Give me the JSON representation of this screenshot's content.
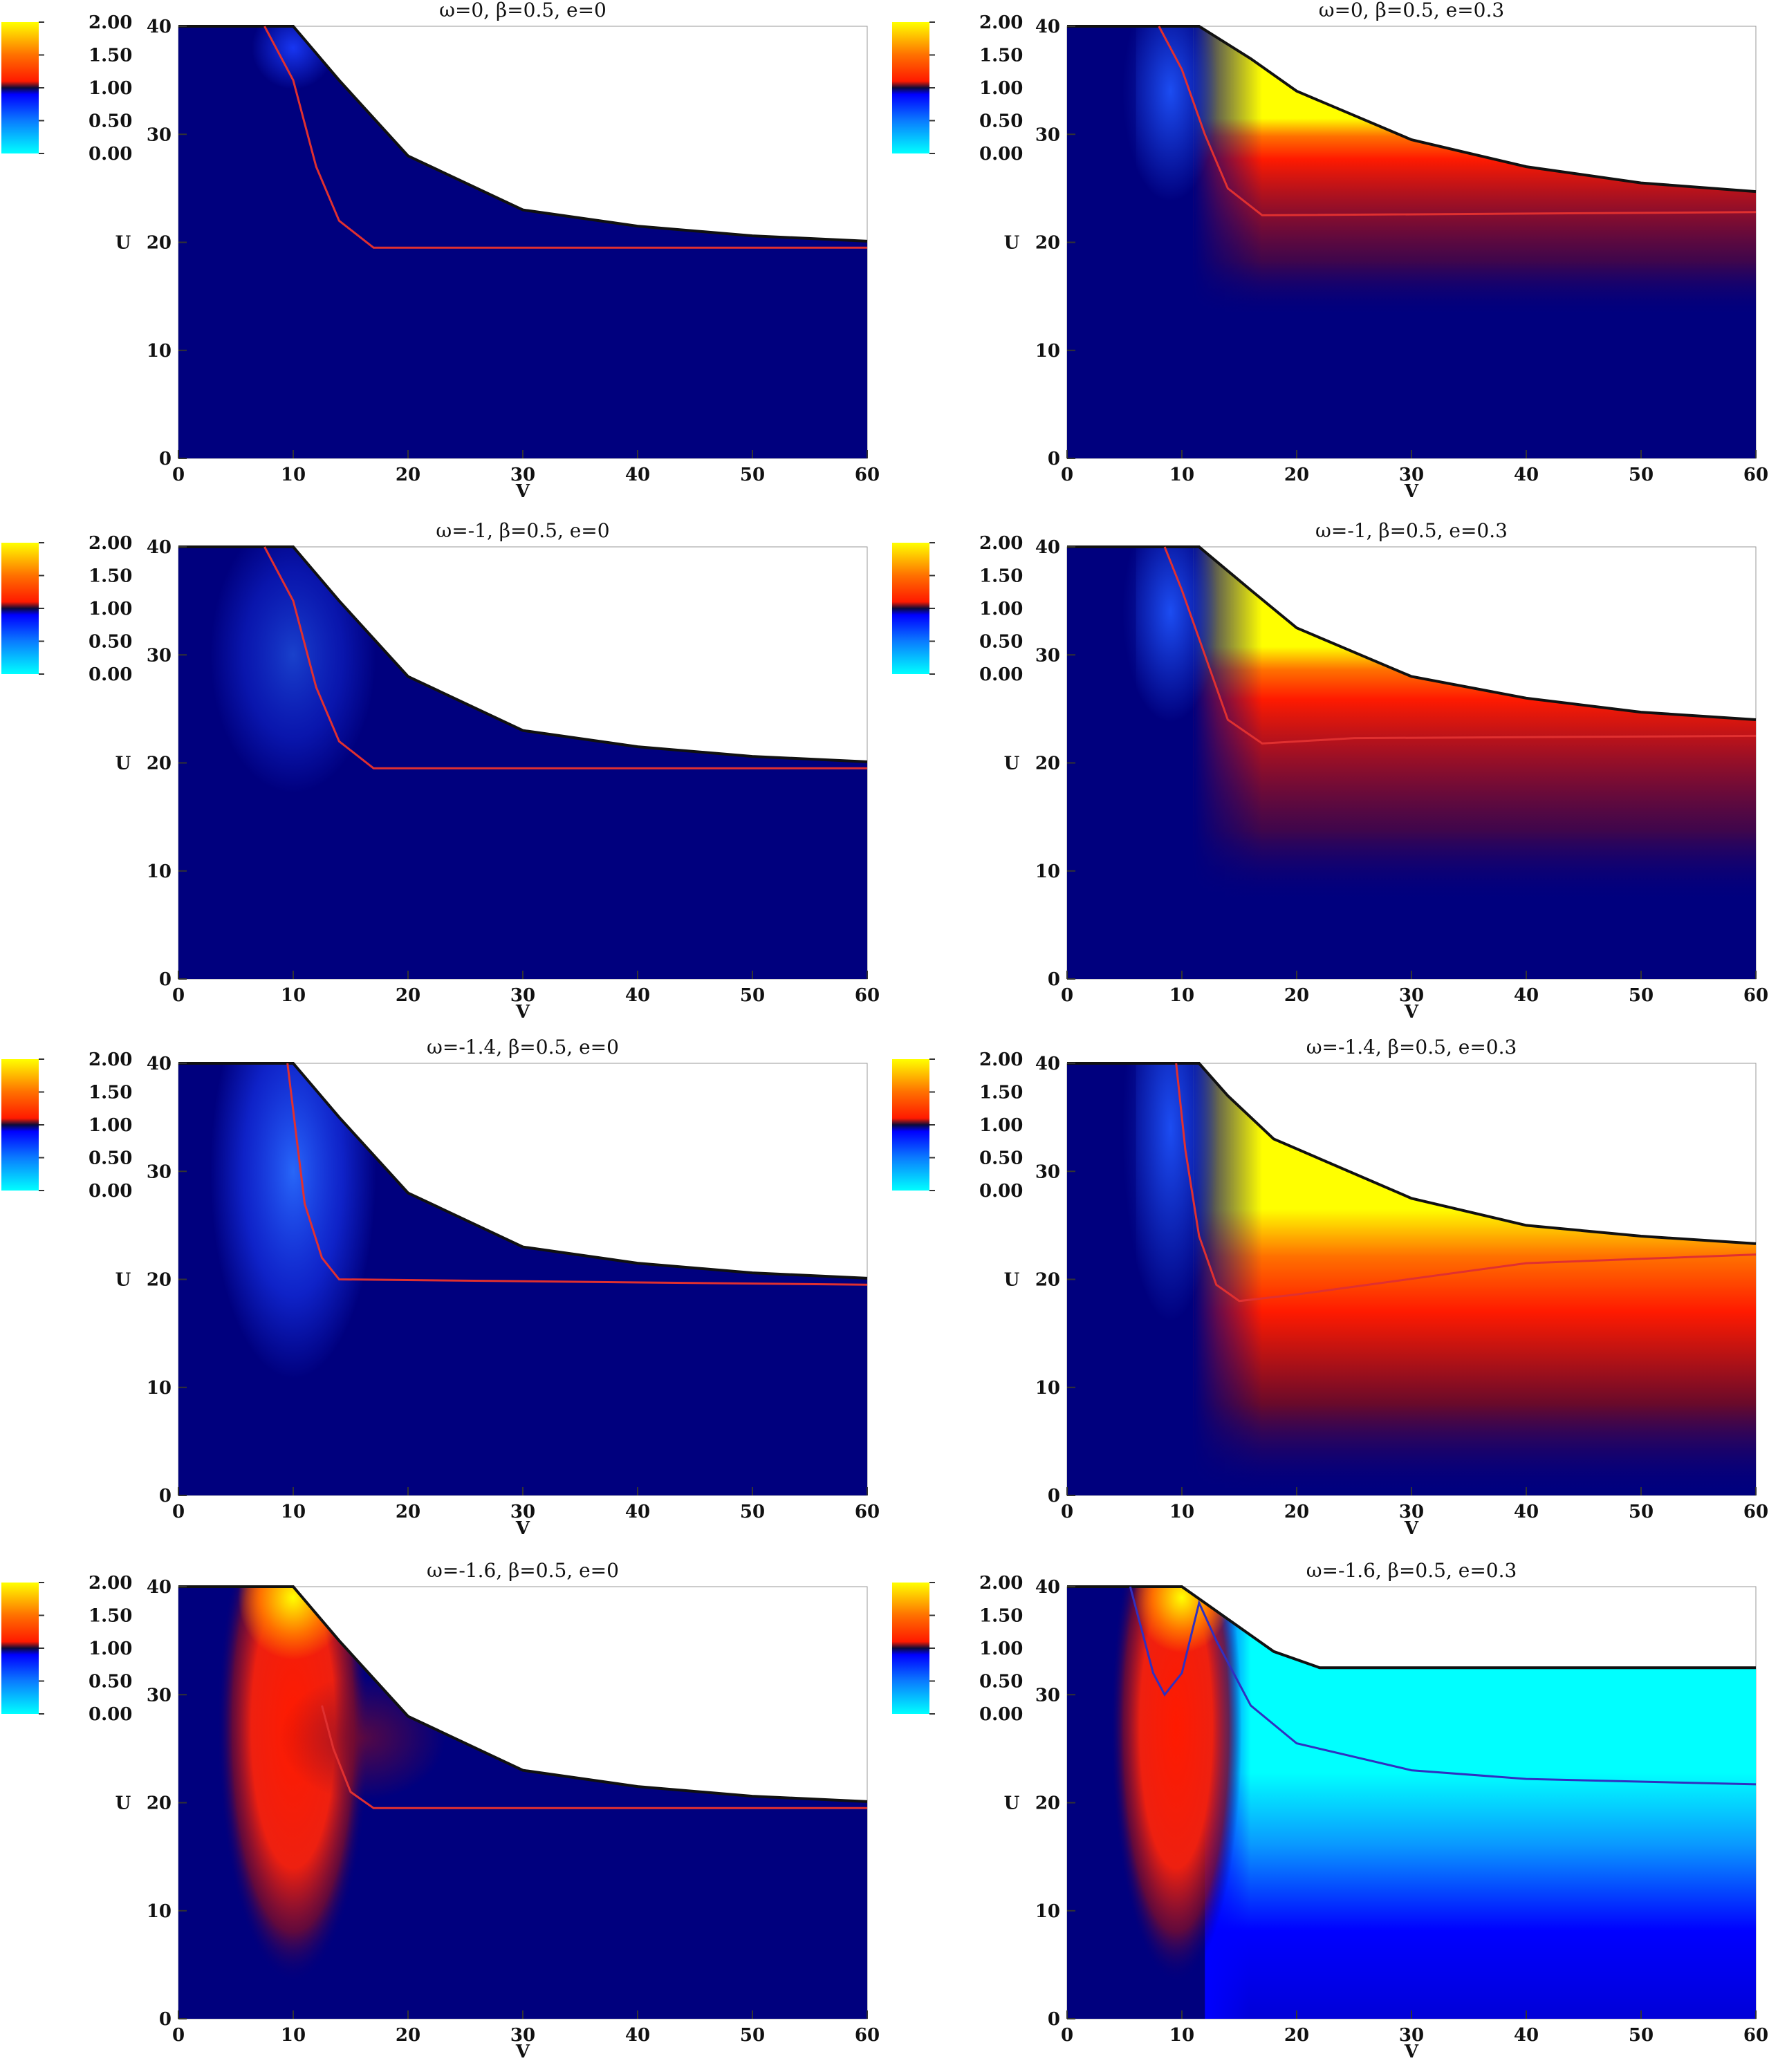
{
  "colorbar": {
    "ticks": [
      "2.00",
      "1.50",
      "1.00",
      "0.50",
      "0.00"
    ],
    "values": [
      2.0,
      1.5,
      1.0,
      0.5,
      0.0
    ],
    "colors": {
      "0.00": "#00ffff",
      "0.50": "#0a7bff",
      "0.90": "#0000ff",
      "1.00": "#0b0b3a",
      "1.10": "#ff1a00",
      "1.50": "#ff7000",
      "2.00": "#ffff00"
    },
    "background": "#00007e"
  },
  "chart_data": [
    {
      "type": "heatmap",
      "title": "ω=0,   β=0.5,   e=0",
      "xlabel": "V",
      "ylabel": "U",
      "xlim": [
        0,
        60
      ],
      "ylim": [
        0,
        40
      ],
      "xticks": [
        "0",
        "10",
        "20",
        "30",
        "40",
        "50",
        "60"
      ],
      "yticks": [
        "0",
        "10",
        "20",
        "30",
        "40"
      ],
      "boundary": [
        [
          0,
          40
        ],
        [
          10,
          40
        ],
        [
          14,
          35
        ],
        [
          20,
          28
        ],
        [
          30,
          23
        ],
        [
          40,
          21.5
        ],
        [
          50,
          20.6
        ],
        [
          60,
          20.1
        ]
      ],
      "red_curve": [
        [
          7.5,
          40
        ],
        [
          10,
          35
        ],
        [
          12,
          27
        ],
        [
          14,
          22
        ],
        [
          17,
          19.5
        ],
        [
          60,
          19.5
        ]
      ]
    },
    {
      "type": "heatmap",
      "title": "ω=0,   β=0.5,   e=0.3",
      "xlabel": "V",
      "ylabel": "U",
      "xlim": [
        0,
        60
      ],
      "ylim": [
        0,
        40
      ],
      "xticks": [
        "0",
        "10",
        "20",
        "30",
        "40",
        "50",
        "60"
      ],
      "yticks": [
        "0",
        "10",
        "20",
        "30",
        "40"
      ],
      "boundary": [
        [
          0,
          40
        ],
        [
          11.5,
          40
        ],
        [
          16,
          37
        ],
        [
          20,
          34
        ],
        [
          30,
          29.5
        ],
        [
          40,
          27
        ],
        [
          50,
          25.5
        ],
        [
          60,
          24.7
        ]
      ],
      "red_curve": [
        [
          8,
          40
        ],
        [
          10,
          36
        ],
        [
          12,
          30
        ],
        [
          14,
          25
        ],
        [
          17,
          22.5
        ],
        [
          60,
          22.8
        ]
      ]
    },
    {
      "type": "heatmap",
      "title": "ω=-1,   β=0.5,   e=0",
      "xlabel": "V",
      "ylabel": "U",
      "xlim": [
        0,
        60
      ],
      "ylim": [
        0,
        40
      ],
      "xticks": [
        "0",
        "10",
        "20",
        "30",
        "40",
        "50",
        "60"
      ],
      "yticks": [
        "0",
        "10",
        "20",
        "30",
        "40"
      ],
      "boundary": [
        [
          0,
          40
        ],
        [
          10,
          40
        ],
        [
          14,
          35
        ],
        [
          20,
          28
        ],
        [
          30,
          23
        ],
        [
          40,
          21.5
        ],
        [
          50,
          20.6
        ],
        [
          60,
          20.1
        ]
      ],
      "red_curve": [
        [
          7.5,
          40
        ],
        [
          10,
          35
        ],
        [
          12,
          27
        ],
        [
          14,
          22
        ],
        [
          17,
          19.5
        ],
        [
          60,
          19.5
        ]
      ]
    },
    {
      "type": "heatmap",
      "title": "ω=-1,   β=0.5,   e=0.3",
      "xlabel": "V",
      "ylabel": "U",
      "xlim": [
        0,
        60
      ],
      "ylim": [
        0,
        40
      ],
      "xticks": [
        "0",
        "10",
        "20",
        "30",
        "40",
        "50",
        "60"
      ],
      "yticks": [
        "0",
        "10",
        "20",
        "30",
        "40"
      ],
      "boundary": [
        [
          0,
          40
        ],
        [
          11.5,
          40
        ],
        [
          16,
          36
        ],
        [
          20,
          32.5
        ],
        [
          30,
          28
        ],
        [
          40,
          26
        ],
        [
          50,
          24.7
        ],
        [
          60,
          24
        ]
      ],
      "red_curve": [
        [
          8.5,
          40
        ],
        [
          10,
          36
        ],
        [
          12,
          30
        ],
        [
          14,
          24
        ],
        [
          17,
          21.8
        ],
        [
          25,
          22.3
        ],
        [
          60,
          22.5
        ]
      ]
    },
    {
      "type": "heatmap",
      "title": "ω=-1.4,   β=0.5,   e=0",
      "xlabel": "V",
      "ylabel": "U",
      "xlim": [
        0,
        60
      ],
      "ylim": [
        0,
        40
      ],
      "xticks": [
        "0",
        "10",
        "20",
        "30",
        "40",
        "50",
        "60"
      ],
      "yticks": [
        "0",
        "10",
        "20",
        "30",
        "40"
      ],
      "boundary": [
        [
          0,
          40
        ],
        [
          10,
          40
        ],
        [
          14,
          35
        ],
        [
          20,
          28
        ],
        [
          30,
          23
        ],
        [
          40,
          21.5
        ],
        [
          50,
          20.6
        ],
        [
          60,
          20.1
        ]
      ],
      "red_curve": [
        [
          9.5,
          40
        ],
        [
          10.3,
          33
        ],
        [
          11,
          27
        ],
        [
          12.5,
          22
        ],
        [
          14,
          20
        ],
        [
          60,
          19.5
        ]
      ]
    },
    {
      "type": "heatmap",
      "title": "ω=-1.4,   β=0.5,   e=0.3",
      "xlabel": "V",
      "ylabel": "U",
      "xlim": [
        0,
        60
      ],
      "ylim": [
        0,
        40
      ],
      "xticks": [
        "0",
        "10",
        "20",
        "30",
        "40",
        "50",
        "60"
      ],
      "yticks": [
        "0",
        "10",
        "20",
        "30",
        "40"
      ],
      "boundary": [
        [
          0,
          40
        ],
        [
          11.5,
          40
        ],
        [
          14,
          37
        ],
        [
          18,
          33
        ],
        [
          30,
          27.5
        ],
        [
          40,
          25
        ],
        [
          50,
          24
        ],
        [
          60,
          23.3
        ]
      ],
      "red_curve": [
        [
          9.5,
          40
        ],
        [
          10.3,
          32
        ],
        [
          11.5,
          24
        ],
        [
          13,
          19.5
        ],
        [
          15,
          18
        ],
        [
          20,
          18.6
        ],
        [
          40,
          21.5
        ],
        [
          60,
          22.3
        ]
      ]
    },
    {
      "type": "heatmap",
      "title": "ω=-1.6,   β=0.5,   e=0",
      "xlabel": "V",
      "ylabel": "U",
      "xlim": [
        0,
        60
      ],
      "ylim": [
        0,
        40
      ],
      "xticks": [
        "0",
        "10",
        "20",
        "30",
        "40",
        "50",
        "60"
      ],
      "yticks": [
        "0",
        "10",
        "20",
        "30",
        "40"
      ],
      "boundary": [
        [
          0,
          40
        ],
        [
          10,
          40
        ],
        [
          14,
          35
        ],
        [
          20,
          28
        ],
        [
          30,
          23
        ],
        [
          40,
          21.5
        ],
        [
          50,
          20.6
        ],
        [
          60,
          20.1
        ]
      ],
      "red_curve": [
        [
          12.5,
          29
        ],
        [
          13.5,
          25
        ],
        [
          15,
          21
        ],
        [
          17,
          19.5
        ],
        [
          60,
          19.5
        ]
      ]
    },
    {
      "type": "heatmap",
      "title": "ω=-1.6,   β=0.5,   e=0.3",
      "xlabel": "V",
      "ylabel": "U",
      "xlim": [
        0,
        60
      ],
      "ylim": [
        0,
        40
      ],
      "xticks": [
        "0",
        "10",
        "20",
        "30",
        "40",
        "50",
        "60"
      ],
      "yticks": [
        "0",
        "10",
        "20",
        "30",
        "40"
      ],
      "boundary": [
        [
          0,
          40
        ],
        [
          10,
          40
        ],
        [
          12,
          38.5
        ],
        [
          14,
          37
        ],
        [
          18,
          34
        ],
        [
          22,
          32.5
        ],
        [
          60,
          32.5
        ]
      ],
      "red_curve": [
        [
          5.5,
          40
        ],
        [
          7.5,
          32
        ],
        [
          8.5,
          30
        ],
        [
          10,
          32
        ],
        [
          11.5,
          38.5
        ],
        [
          13,
          35
        ],
        [
          16,
          29
        ],
        [
          20,
          25.5
        ],
        [
          30,
          23
        ],
        [
          40,
          22.2
        ],
        [
          60,
          21.7
        ]
      ]
    }
  ]
}
